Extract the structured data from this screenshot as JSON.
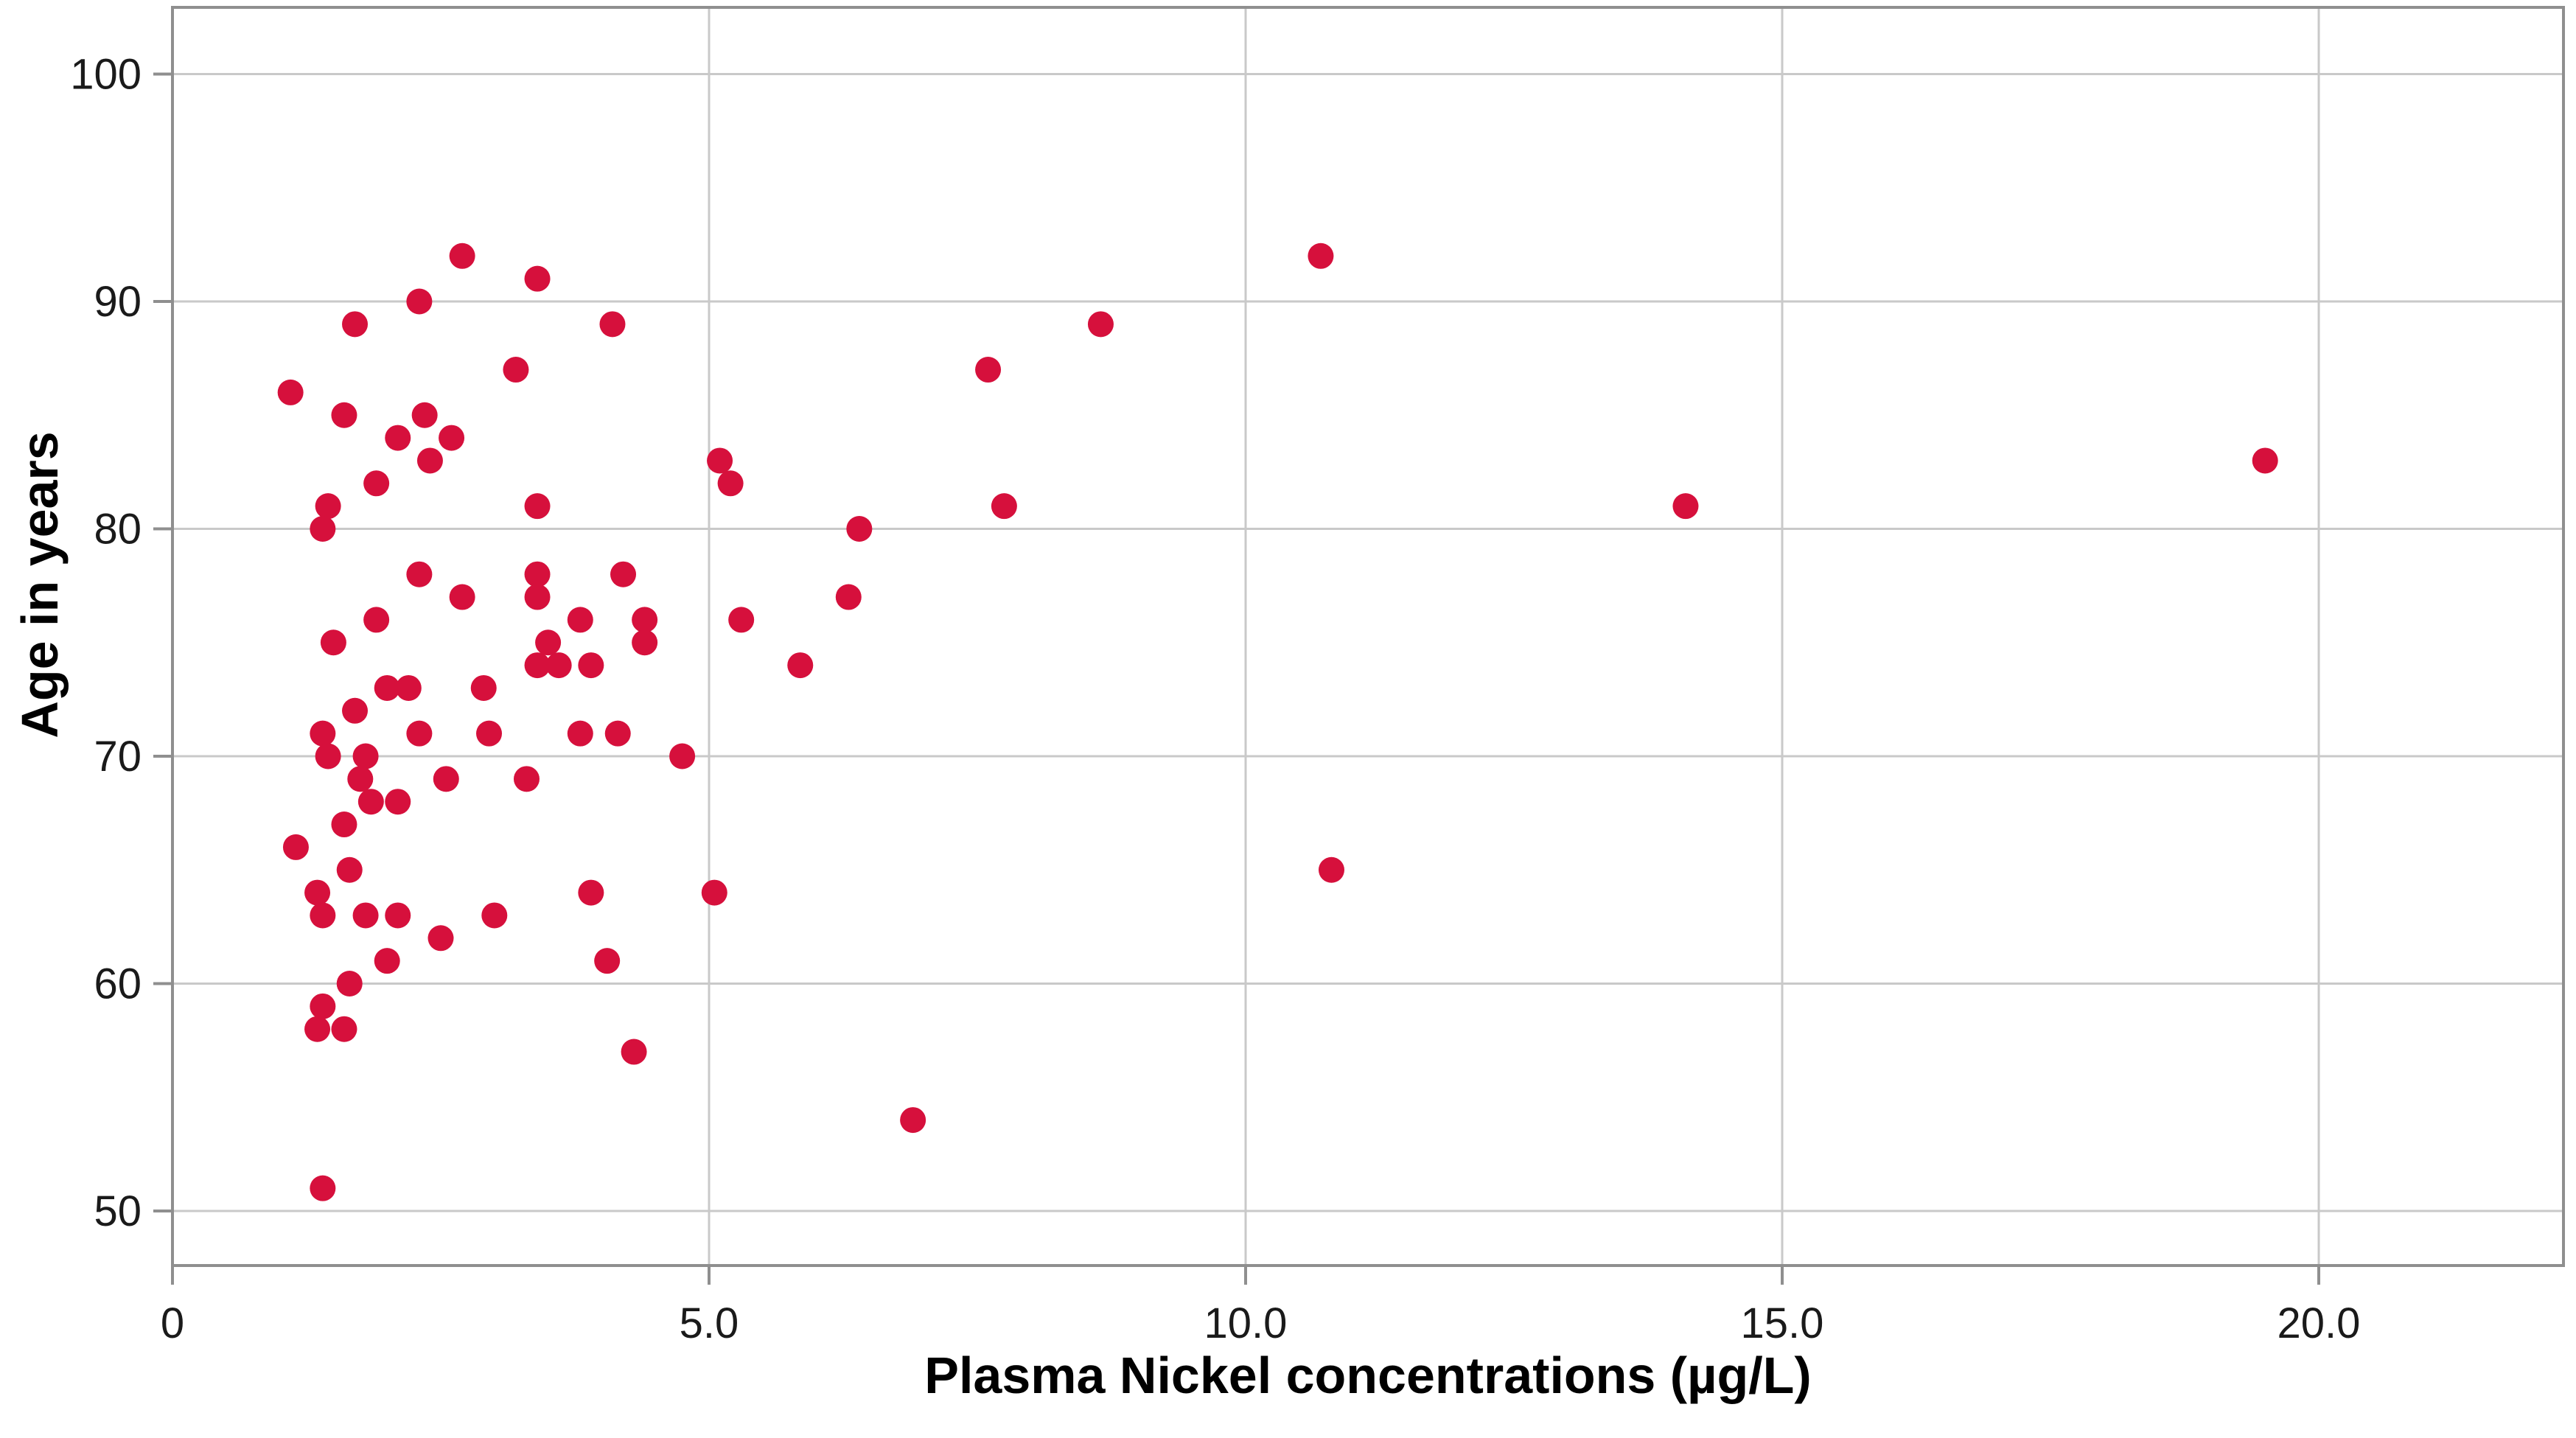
{
  "chart_data": {
    "type": "scatter",
    "title": "",
    "xlabel": "Plasma Nickel concentrations (µg/L)",
    "ylabel": "Age in years",
    "x_tick_values": [
      0,
      5,
      10,
      15,
      20
    ],
    "x_tick_labels": [
      "0",
      "5.0",
      "10.0",
      "15.0",
      "20.0"
    ],
    "y_tick_values": [
      50,
      60,
      70,
      80,
      90,
      100
    ],
    "y_tick_labels": [
      "50",
      "60",
      "70",
      "80",
      "90",
      "100"
    ],
    "xlim": [
      0,
      22.3
    ],
    "ylim": [
      47.6,
      102.9
    ],
    "grid": true,
    "legend_position": "none",
    "points": [
      [
        2.7,
        92
      ],
      [
        10.7,
        92
      ],
      [
        3.4,
        91
      ],
      [
        2.3,
        90
      ],
      [
        1.7,
        89
      ],
      [
        4.1,
        89
      ],
      [
        8.65,
        89
      ],
      [
        3.2,
        87
      ],
      [
        7.6,
        87
      ],
      [
        1.1,
        86
      ],
      [
        1.6,
        85
      ],
      [
        2.35,
        85
      ],
      [
        2.1,
        84
      ],
      [
        2.6,
        84
      ],
      [
        2.4,
        83
      ],
      [
        5.1,
        83
      ],
      [
        19.5,
        83
      ],
      [
        1.9,
        82
      ],
      [
        5.2,
        82
      ],
      [
        1.45,
        81
      ],
      [
        3.4,
        81
      ],
      [
        7.75,
        81
      ],
      [
        14.1,
        81
      ],
      [
        1.4,
        80
      ],
      [
        6.4,
        80
      ],
      [
        2.3,
        78
      ],
      [
        3.4,
        78
      ],
      [
        4.2,
        78
      ],
      [
        2.7,
        77
      ],
      [
        3.4,
        77
      ],
      [
        6.3,
        77
      ],
      [
        1.9,
        76
      ],
      [
        3.8,
        76
      ],
      [
        4.4,
        76
      ],
      [
        5.3,
        76
      ],
      [
        1.5,
        75
      ],
      [
        3.5,
        75
      ],
      [
        4.4,
        75
      ],
      [
        3.4,
        74
      ],
      [
        3.6,
        74
      ],
      [
        3.9,
        74
      ],
      [
        5.85,
        74
      ],
      [
        2.0,
        73
      ],
      [
        2.2,
        73
      ],
      [
        2.9,
        73
      ],
      [
        1.7,
        72
      ],
      [
        1.4,
        71
      ],
      [
        2.3,
        71
      ],
      [
        2.95,
        71
      ],
      [
        3.8,
        71
      ],
      [
        4.15,
        71
      ],
      [
        1.45,
        70
      ],
      [
        1.8,
        70
      ],
      [
        4.75,
        70
      ],
      [
        1.75,
        69
      ],
      [
        2.55,
        69
      ],
      [
        3.3,
        69
      ],
      [
        1.85,
        68
      ],
      [
        2.1,
        68
      ],
      [
        1.6,
        67
      ],
      [
        1.15,
        66
      ],
      [
        1.65,
        65
      ],
      [
        10.8,
        65
      ],
      [
        1.35,
        64
      ],
      [
        3.9,
        64
      ],
      [
        5.05,
        64
      ],
      [
        1.4,
        63
      ],
      [
        1.8,
        63
      ],
      [
        2.1,
        63
      ],
      [
        3.0,
        63
      ],
      [
        2.5,
        62
      ],
      [
        2.0,
        61
      ],
      [
        4.05,
        61
      ],
      [
        1.65,
        60
      ],
      [
        1.4,
        59
      ],
      [
        1.35,
        58
      ],
      [
        1.6,
        58
      ],
      [
        4.3,
        57
      ],
      [
        6.9,
        54
      ],
      [
        1.4,
        51
      ]
    ]
  },
  "colors": {
    "background": "#ffffff",
    "point_fill": "#d6103c",
    "grid_line": "#c9c9c9",
    "frame_line": "#8f8f8f",
    "tick_text": "#1a1a1a",
    "title_text": "#000000"
  }
}
